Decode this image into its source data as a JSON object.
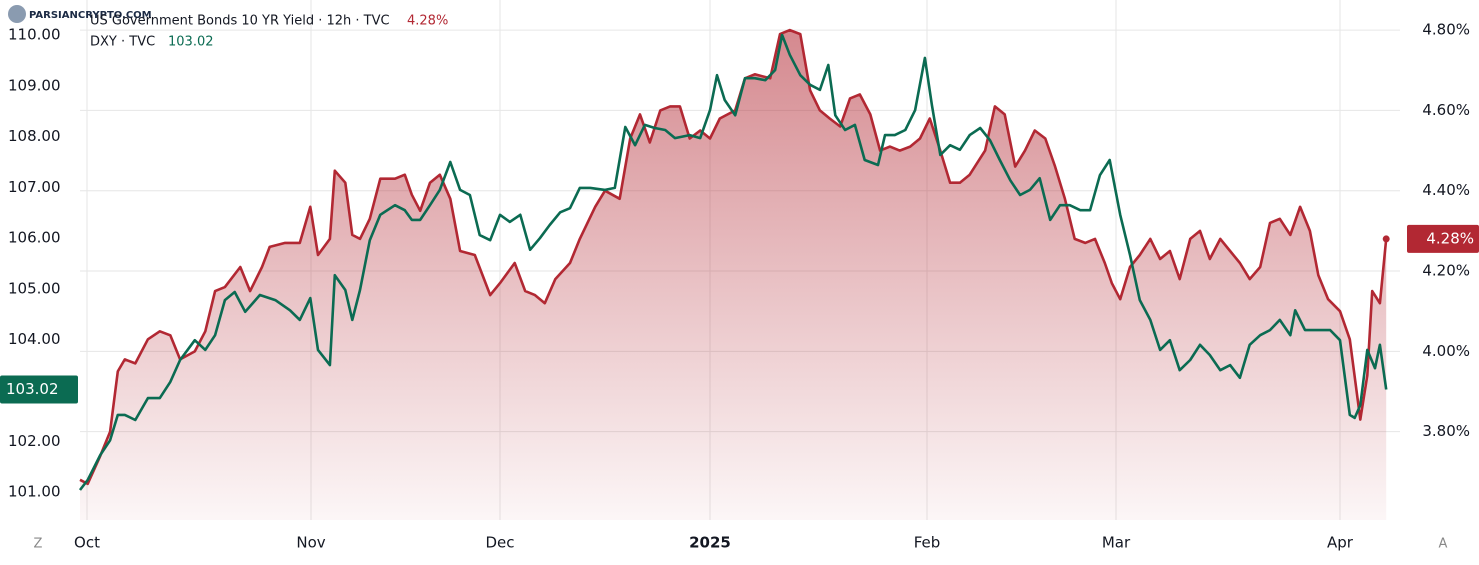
{
  "chart_data": {
    "type": "line",
    "series": [
      {
        "name": "US Government Bonds 10 YR Yield · 12h · TVC",
        "color": "#b22833",
        "axis": "y2",
        "area": true,
        "last_value_label": "4.28%",
        "x": [
          0,
          1.1,
          2.9,
          4.3,
          5.4,
          6.4,
          7.9,
          9.7,
          11.4,
          12.9,
          14.3,
          16.4,
          17.9,
          19.3,
          20.7,
          22.9,
          24.3,
          26,
          27.1,
          29.3,
          31.4,
          32.9,
          34,
          35.7,
          36.4,
          37.9,
          38.9,
          40,
          41.4,
          42.9,
          45,
          46.4,
          47.4,
          48.6,
          50,
          51.4,
          52.9,
          54.3,
          56.4,
          58.6,
          60,
          62.1,
          63.6,
          65,
          66.4,
          67.9,
          70,
          71.4,
          73.6,
          75,
          77.1,
          78.6,
          80,
          81.4,
          82.9,
          84.3,
          85.7,
          87.1,
          88.6,
          90,
          91.4,
          93.6,
          95,
          96.4,
          98.6,
          100,
          101.4,
          102.9,
          104.3,
          105.7,
          107.1,
          108.6,
          110,
          111.4,
          112.9,
          114.3,
          115.7,
          117.1,
          118.6,
          120,
          121.4,
          122.9,
          124.3,
          125.7,
          127.1,
          129.3,
          130.7,
          132.1,
          133.6,
          135,
          136.4,
          137.9,
          139.3,
          140.7,
          142.1,
          143.6,
          145,
          146.4,
          147.4,
          148.6,
          150,
          151.4,
          152.9,
          154.3,
          155.7,
          157.1,
          158.6,
          160,
          161.4,
          162.9,
          164.3,
          165.7,
          167.1,
          168.6,
          170,
          171.4,
          172.9,
          174.3,
          175.7,
          176.9,
          178.3,
          180,
          181.4,
          182.9,
          183.9,
          184.6,
          185.7,
          186.6
        ],
        "values": [
          3.68,
          3.67,
          3.74,
          3.8,
          3.95,
          3.98,
          3.97,
          4.03,
          4.05,
          4.04,
          3.98,
          4.0,
          4.05,
          4.15,
          4.16,
          4.21,
          4.15,
          4.21,
          4.26,
          4.27,
          4.27,
          4.36,
          4.24,
          4.28,
          4.45,
          4.42,
          4.29,
          4.28,
          4.33,
          4.43,
          4.43,
          4.44,
          4.39,
          4.35,
          4.42,
          4.44,
          4.38,
          4.25,
          4.24,
          4.14,
          4.17,
          4.22,
          4.15,
          4.14,
          4.12,
          4.18,
          4.22,
          4.28,
          4.36,
          4.4,
          4.38,
          4.53,
          4.59,
          4.52,
          4.6,
          4.61,
          4.61,
          4.53,
          4.55,
          4.53,
          4.58,
          4.6,
          4.68,
          4.69,
          4.68,
          4.79,
          4.8,
          4.79,
          4.65,
          4.6,
          4.58,
          4.56,
          4.63,
          4.64,
          4.59,
          4.5,
          4.51,
          4.5,
          4.51,
          4.53,
          4.58,
          4.5,
          4.42,
          4.42,
          4.44,
          4.5,
          4.61,
          4.59,
          4.46,
          4.5,
          4.55,
          4.53,
          4.46,
          4.38,
          4.28,
          4.27,
          4.28,
          4.22,
          4.17,
          4.13,
          4.21,
          4.24,
          4.28,
          4.23,
          4.25,
          4.18,
          4.28,
          4.3,
          4.23,
          4.28,
          4.25,
          4.22,
          4.18,
          4.21,
          4.32,
          4.33,
          4.29,
          4.36,
          4.3,
          4.19,
          4.13,
          4.1,
          4.03,
          3.83,
          3.94,
          4.15,
          4.12,
          4.28
        ]
      },
      {
        "name": "DXY · TVC",
        "color": "#0b6b52",
        "last_value_label": "103.02",
        "x": [
          0,
          1.1,
          2.9,
          4.3,
          5.4,
          6.4,
          7.9,
          9.7,
          11.4,
          12.9,
          14.3,
          16.4,
          17.9,
          19.3,
          20.7,
          22.1,
          23.6,
          25.7,
          27.9,
          30,
          31.4,
          32.9,
          34,
          35.7,
          36.4,
          37.9,
          38.9,
          40,
          41.4,
          42.9,
          45,
          46.4,
          47.4,
          48.6,
          50,
          51.4,
          52.9,
          54.3,
          55.7,
          57.1,
          58.6,
          60,
          61.4,
          62.9,
          64.3,
          65.7,
          67.1,
          68.6,
          70,
          71.4,
          72.9,
          75,
          76.4,
          77.9,
          79.3,
          80.7,
          82.1,
          83.6,
          85,
          87.1,
          88.6,
          90,
          91,
          92.1,
          93.6,
          95,
          96.4,
          97.9,
          99.3,
          100.3,
          101.4,
          102.9,
          104.3,
          105.7,
          106.9,
          107.9,
          109.3,
          110.7,
          112.1,
          114,
          115,
          116.4,
          117.9,
          119.3,
          120.7,
          121.7,
          122.9,
          124.3,
          125.7,
          127.1,
          128.6,
          130,
          131.4,
          132.9,
          134.3,
          135.7,
          137.1,
          138.6,
          140,
          141.4,
          142.9,
          144.3,
          145.7,
          147.1,
          148.6,
          150,
          151.4,
          152.9,
          154.3,
          155.7,
          157.1,
          158.6,
          160,
          161.4,
          162.9,
          164.3,
          165.7,
          167.1,
          168.6,
          170,
          171.4,
          172.9,
          173.6,
          175,
          177.1,
          178.6,
          180,
          181.4,
          182.1,
          182.9,
          183.9,
          185,
          185.7,
          186.6
        ],
        "values": [
          101.04,
          101.24,
          101.73,
          102.02,
          102.52,
          102.52,
          102.42,
          102.85,
          102.85,
          103.17,
          103.6,
          103.99,
          103.8,
          104.09,
          104.78,
          104.94,
          104.55,
          104.88,
          104.78,
          104.58,
          104.39,
          104.82,
          103.8,
          103.5,
          105.27,
          104.98,
          104.39,
          104.98,
          105.96,
          106.46,
          106.65,
          106.55,
          106.36,
          106.36,
          106.65,
          106.95,
          107.5,
          106.95,
          106.85,
          106.06,
          105.96,
          106.46,
          106.32,
          106.46,
          105.77,
          106.0,
          106.26,
          106.51,
          106.59,
          106.99,
          106.99,
          106.95,
          106.99,
          108.19,
          107.83,
          108.23,
          108.17,
          108.13,
          107.97,
          108.03,
          107.97,
          108.52,
          109.21,
          108.72,
          108.42,
          109.15,
          109.15,
          109.11,
          109.31,
          110.0,
          109.61,
          109.21,
          109.02,
          108.92,
          109.41,
          108.42,
          108.13,
          108.23,
          107.54,
          107.44,
          108.03,
          108.03,
          108.13,
          108.52,
          109.55,
          108.62,
          107.64,
          107.83,
          107.74,
          108.03,
          108.17,
          107.93,
          107.54,
          107.14,
          106.85,
          106.95,
          107.18,
          106.36,
          106.65,
          106.65,
          106.55,
          106.55,
          107.24,
          107.54,
          106.46,
          105.67,
          104.78,
          104.39,
          103.8,
          103.99,
          103.4,
          103.6,
          103.9,
          103.7,
          103.4,
          103.5,
          103.25,
          103.9,
          104.09,
          104.19,
          104.39,
          104.09,
          104.58,
          104.19,
          104.19,
          104.19,
          103.99,
          102.52,
          102.46,
          102.71,
          103.8,
          103.44,
          103.9,
          103.02
        ]
      }
    ],
    "xlim": [
      0,
      190
    ],
    "xticks": [
      {
        "value": 1,
        "label": "Oct"
      },
      {
        "value": 33,
        "label": "Nov"
      },
      {
        "value": 60,
        "label": "Dec"
      },
      {
        "value": 90,
        "label": "2025"
      },
      {
        "value": 121,
        "label": "Feb"
      },
      {
        "value": 148,
        "label": "Mar"
      },
      {
        "value": 180,
        "label": "Apr"
      }
    ],
    "ylim": [
      100.45,
      110.69
    ],
    "yticks": [
      {
        "value": 101,
        "label": "101.00"
      },
      {
        "value": 102,
        "label": "102.00"
      },
      {
        "value": 103,
        "label": "103.00"
      },
      {
        "value": 104,
        "label": "104.00"
      },
      {
        "value": 105,
        "label": "105.00"
      },
      {
        "value": 106,
        "label": "106.00"
      },
      {
        "value": 107,
        "label": "107.00"
      },
      {
        "value": 108,
        "label": "108.00"
      },
      {
        "value": 109,
        "label": "109.00"
      },
      {
        "value": 110,
        "label": "110.00"
      }
    ],
    "y2lim": [
      3.58,
      4.875
    ],
    "y2ticks": [
      {
        "value": 3.8,
        "label": "3.80%"
      },
      {
        "value": 4.0,
        "label": "4.00%"
      },
      {
        "value": 4.2,
        "label": "4.20%"
      },
      {
        "value": 4.4,
        "label": "4.40%"
      },
      {
        "value": 4.6,
        "label": "4.60%"
      },
      {
        "value": 4.8,
        "label": "4.80%"
      }
    ],
    "grid": true
  },
  "ui": {
    "watermark": "PARSIANCRYPTO.COM",
    "left_button": "Z",
    "right_button": "A"
  }
}
